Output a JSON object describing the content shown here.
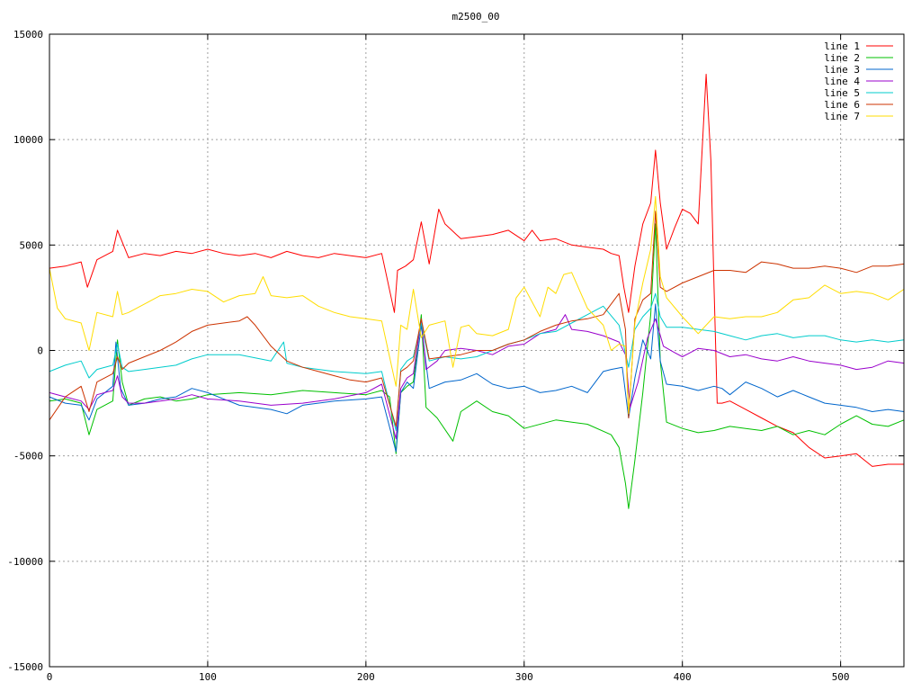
{
  "chart_data": {
    "type": "line",
    "title": "m2500_00",
    "xlabel": "",
    "ylabel": "",
    "xlim": [
      0,
      540
    ],
    "ylim": [
      -15000,
      15000
    ],
    "x_ticks": [
      0,
      100,
      200,
      300,
      400,
      500
    ],
    "y_ticks": [
      -15000,
      -10000,
      -5000,
      0,
      5000,
      10000,
      15000
    ],
    "grid": true,
    "legend_position": "top-right",
    "series": [
      {
        "name": "line 1",
        "color": "#ff0000",
        "x": [
          0,
          10,
          20,
          24,
          30,
          40,
          43,
          50,
          60,
          70,
          80,
          90,
          100,
          110,
          120,
          130,
          140,
          150,
          160,
          170,
          180,
          190,
          200,
          210,
          218,
          220,
          225,
          230,
          235,
          240,
          246,
          250,
          260,
          270,
          280,
          290,
          300,
          305,
          310,
          320,
          330,
          340,
          350,
          355,
          360,
          363,
          366,
          370,
          375,
          380,
          383,
          386,
          390,
          395,
          400,
          405,
          410,
          415,
          418,
          420,
          422,
          425,
          430,
          440,
          450,
          460,
          470,
          480,
          490,
          500,
          510,
          520,
          530,
          540
        ],
        "y": [
          3900,
          4000,
          4200,
          3000,
          4300,
          4700,
          5700,
          4400,
          4600,
          4500,
          4700,
          4600,
          4800,
          4600,
          4500,
          4600,
          4400,
          4700,
          4500,
          4400,
          4600,
          4500,
          4400,
          4600,
          1800,
          3800,
          4000,
          4300,
          6100,
          4100,
          6700,
          6000,
          5300,
          5400,
          5500,
          5700,
          5200,
          5700,
          5200,
          5300,
          5000,
          4900,
          4800,
          4600,
          4500,
          3000,
          1800,
          4000,
          6000,
          7000,
          9500,
          7000,
          4800,
          5800,
          6700,
          6500,
          6000,
          13100,
          9000,
          3000,
          -2500,
          -2500,
          -2400,
          -2800,
          -3200,
          -3600,
          -3900,
          -4600,
          -5100,
          -5000,
          -4900,
          -5500,
          -5400,
          -5400
        ]
      },
      {
        "name": "line 2",
        "color": "#00c000",
        "x": [
          0,
          10,
          20,
          25,
          30,
          40,
          43,
          46,
          50,
          60,
          70,
          80,
          90,
          100,
          120,
          140,
          160,
          180,
          200,
          210,
          215,
          219,
          222,
          226,
          230,
          235,
          238,
          245,
          255,
          260,
          270,
          280,
          290,
          300,
          320,
          340,
          355,
          360,
          364,
          366,
          370,
          375,
          380,
          383,
          386,
          390,
          400,
          410,
          420,
          430,
          440,
          450,
          460,
          470,
          480,
          490,
          500,
          510,
          520,
          530,
          540
        ],
        "y": [
          -2400,
          -2300,
          -2500,
          -4000,
          -2800,
          -2400,
          500,
          -1500,
          -2600,
          -2300,
          -2200,
          -2400,
          -2300,
          -2100,
          -2000,
          -2100,
          -1900,
          -2000,
          -2100,
          -1900,
          -2200,
          -4900,
          -2000,
          -1700,
          -1500,
          1700,
          -2700,
          -3200,
          -4300,
          -2900,
          -2400,
          -2900,
          -3100,
          -3700,
          -3300,
          -3500,
          -4000,
          -4600,
          -6300,
          -7500,
          -5200,
          -2000,
          1700,
          6000,
          -500,
          -3400,
          -3700,
          -3900,
          -3800,
          -3600,
          -3700,
          -3800,
          -3600,
          -4000,
          -3800,
          -4000,
          -3500,
          -3100,
          -3500,
          -3600,
          -3300
        ]
      },
      {
        "name": "line 3",
        "color": "#0066cc",
        "x": [
          0,
          10,
          20,
          25,
          30,
          40,
          42,
          45,
          50,
          60,
          70,
          80,
          90,
          100,
          120,
          140,
          150,
          160,
          180,
          200,
          210,
          219,
          222,
          226,
          230,
          235,
          240,
          250,
          260,
          270,
          280,
          290,
          300,
          310,
          320,
          330,
          340,
          350,
          355,
          362,
          366,
          370,
          375,
          380,
          383,
          386,
          390,
          400,
          410,
          420,
          425,
          430,
          440,
          450,
          460,
          470,
          480,
          490,
          500,
          510,
          520,
          530,
          540
        ],
        "y": [
          -2200,
          -2500,
          -2600,
          -3300,
          -2300,
          -1700,
          400,
          -1800,
          -2600,
          -2500,
          -2300,
          -2200,
          -1800,
          -2000,
          -2600,
          -2800,
          -3000,
          -2600,
          -2400,
          -2300,
          -2200,
          -4800,
          -2000,
          -1500,
          -1800,
          1200,
          -1800,
          -1500,
          -1400,
          -1100,
          -1600,
          -1800,
          -1700,
          -2000,
          -1900,
          -1700,
          -2000,
          -1000,
          -900,
          -800,
          -3200,
          -1300,
          500,
          -400,
          2200,
          -500,
          -1600,
          -1700,
          -1900,
          -1700,
          -1800,
          -2100,
          -1500,
          -1800,
          -2200,
          -1900,
          -2200,
          -2500,
          -2600,
          -2700,
          -2900,
          -2800,
          -2900
        ]
      },
      {
        "name": "line 4",
        "color": "#9900cc",
        "x": [
          0,
          10,
          20,
          25,
          30,
          40,
          43,
          46,
          50,
          60,
          70,
          80,
          90,
          100,
          120,
          140,
          160,
          180,
          200,
          210,
          219,
          222,
          226,
          230,
          235,
          238,
          245,
          250,
          260,
          270,
          280,
          290,
          300,
          310,
          320,
          326,
          330,
          340,
          350,
          360,
          364,
          367,
          372,
          378,
          383,
          388,
          395,
          400,
          410,
          420,
          430,
          440,
          450,
          460,
          470,
          480,
          490,
          500,
          510,
          520,
          530,
          540
        ],
        "y": [
          -2000,
          -2200,
          -2400,
          -2800,
          -2100,
          -1900,
          -1200,
          -2200,
          -2500,
          -2500,
          -2400,
          -2300,
          -2100,
          -2300,
          -2400,
          -2600,
          -2500,
          -2300,
          -2000,
          -1600,
          -4200,
          -1800,
          -1300,
          -1100,
          1500,
          -900,
          -500,
          0,
          100,
          0,
          -200,
          200,
          300,
          800,
          1000,
          1700,
          1000,
          900,
          700,
          400,
          -200,
          -2700,
          -1500,
          600,
          1500,
          200,
          -100,
          -300,
          100,
          0,
          -300,
          -200,
          -400,
          -500,
          -300,
          -500,
          -600,
          -700,
          -900,
          -800,
          -500,
          -600
        ]
      },
      {
        "name": "line 5",
        "color": "#00cccc",
        "x": [
          0,
          10,
          20,
          25,
          30,
          40,
          43,
          46,
          50,
          60,
          70,
          80,
          90,
          100,
          120,
          140,
          148,
          150,
          160,
          180,
          200,
          210,
          219,
          222,
          226,
          230,
          235,
          240,
          250,
          260,
          270,
          280,
          290,
          300,
          310,
          320,
          330,
          340,
          350,
          360,
          366,
          370,
          375,
          380,
          383,
          386,
          390,
          400,
          410,
          420,
          430,
          440,
          450,
          460,
          470,
          480,
          490,
          500,
          510,
          520,
          530,
          540
        ],
        "y": [
          -1000,
          -700,
          -500,
          -1300,
          -900,
          -700,
          300,
          -800,
          -1000,
          -900,
          -800,
          -700,
          -400,
          -200,
          -200,
          -500,
          400,
          -600,
          -800,
          -1000,
          -1100,
          -1000,
          -3800,
          -900,
          -500,
          -300,
          1300,
          -500,
          -300,
          -400,
          -300,
          0,
          300,
          500,
          800,
          900,
          1300,
          1700,
          2100,
          1200,
          -800,
          1000,
          1600,
          2000,
          2700,
          1600,
          1100,
          1100,
          1000,
          900,
          700,
          500,
          700,
          800,
          600,
          700,
          700,
          500,
          400,
          500,
          400,
          500
        ]
      },
      {
        "name": "line 6",
        "color": "#cc3300",
        "x": [
          0,
          10,
          20,
          25,
          30,
          40,
          43,
          46,
          50,
          60,
          70,
          80,
          90,
          100,
          110,
          120,
          125,
          130,
          140,
          150,
          160,
          170,
          180,
          190,
          200,
          210,
          219,
          222,
          226,
          230,
          235,
          240,
          250,
          260,
          270,
          280,
          290,
          300,
          310,
          320,
          330,
          340,
          350,
          355,
          360,
          364,
          366,
          370,
          375,
          380,
          383,
          386,
          390,
          400,
          410,
          420,
          430,
          440,
          450,
          460,
          470,
          480,
          490,
          500,
          510,
          520,
          530,
          540
        ],
        "y": [
          -3300,
          -2200,
          -1700,
          -2900,
          -1500,
          -1100,
          -300,
          -900,
          -600,
          -300,
          0,
          400,
          900,
          1200,
          1300,
          1400,
          1600,
          1200,
          200,
          -500,
          -800,
          -1000,
          -1200,
          -1400,
          -1500,
          -1300,
          -3600,
          -1000,
          -800,
          -500,
          1500,
          -400,
          -300,
          -200,
          0,
          0,
          300,
          500,
          900,
          1200,
          1400,
          1500,
          1700,
          2200,
          2700,
          1000,
          -3200,
          1500,
          2400,
          2700,
          6600,
          3000,
          2800,
          3200,
          3500,
          3800,
          3800,
          3700,
          4200,
          4100,
          3900,
          3900,
          4000,
          3900,
          3700,
          4000,
          4000,
          4100
        ]
      },
      {
        "name": "line 7",
        "color": "#ffdd00",
        "x": [
          0,
          5,
          10,
          20,
          25,
          30,
          40,
          43,
          46,
          50,
          60,
          70,
          80,
          90,
          100,
          110,
          120,
          130,
          135,
          140,
          150,
          160,
          170,
          180,
          190,
          200,
          210,
          219,
          222,
          226,
          230,
          235,
          240,
          250,
          255,
          260,
          265,
          270,
          280,
          290,
          295,
          300,
          310,
          315,
          320,
          325,
          330,
          340,
          350,
          355,
          360,
          364,
          366,
          370,
          375,
          380,
          383,
          386,
          390,
          400,
          410,
          420,
          430,
          440,
          450,
          460,
          470,
          480,
          490,
          500,
          510,
          520,
          530,
          540
        ],
        "y": [
          3900,
          2000,
          1500,
          1300,
          0,
          1800,
          1600,
          2800,
          1700,
          1800,
          2200,
          2600,
          2700,
          2900,
          2800,
          2300,
          2600,
          2700,
          3500,
          2600,
          2500,
          2600,
          2100,
          1800,
          1600,
          1500,
          1400,
          -1700,
          1200,
          1000,
          2900,
          600,
          1200,
          1400,
          -800,
          1100,
          1200,
          800,
          700,
          1000,
          2500,
          3000,
          1600,
          3000,
          2700,
          3600,
          3700,
          2000,
          1200,
          0,
          300,
          200,
          -3000,
          1300,
          3200,
          4800,
          7300,
          3500,
          2500,
          1600,
          800,
          1600,
          1500,
          1600,
          1600,
          1800,
          2400,
          2500,
          3100,
          2700,
          2800,
          2700,
          2400,
          2900
        ]
      }
    ]
  }
}
